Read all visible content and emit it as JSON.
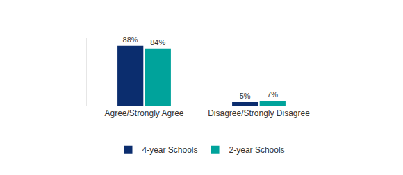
{
  "chart_data": {
    "type": "bar",
    "categories": [
      "Agree/Strongly Agree",
      "Disagree/Strongly Disagree"
    ],
    "series": [
      {
        "name": "4-year Schools",
        "color": "#0b2d6e",
        "values": [
          88,
          5
        ],
        "value_labels": [
          "88%",
          "5%"
        ]
      },
      {
        "name": "2-year Schools",
        "color": "#00a39b",
        "values": [
          84,
          7
        ],
        "value_labels": [
          "84%",
          "7%"
        ]
      }
    ],
    "ylim": [
      0,
      100
    ],
    "grid": false,
    "legend": "bottom",
    "data_labels": true,
    "tick_labels": "x"
  }
}
